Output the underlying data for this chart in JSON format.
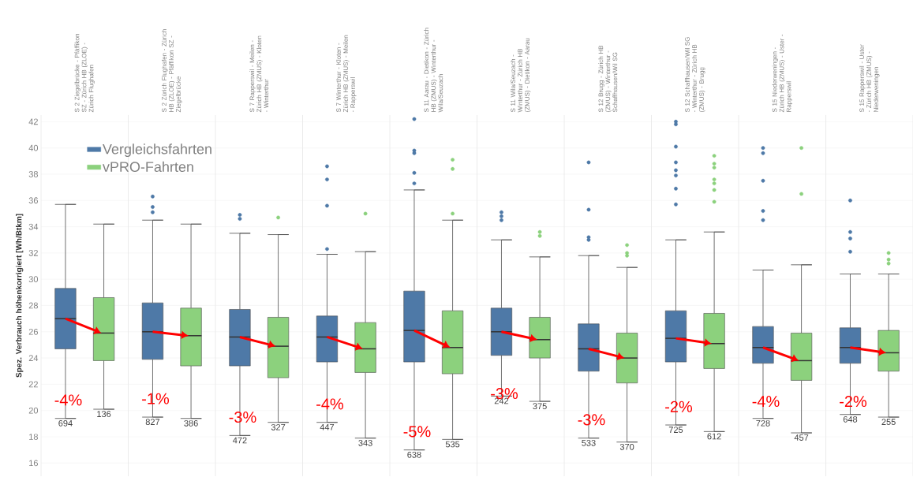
{
  "chart_data": {
    "type": "box",
    "ylabel": "Spez. Verbrauch höhenkorrigiert [Wh/Btkm]",
    "categories": [
      "S 2 Ziegelbrücke - Pfäffikon SZ - Zürich HB (ZLOE) - Zürich Flughafen",
      "S 2 Zürich Flughafen - Zürich HB (ZLOE) - Pfäffikon SZ - Ziegelbrücke",
      "S 7 Rapperswil - Meilen - Zürich HB (ZMUS) - Kloten - Winterthur",
      "S 7 Winterthur - Kloten - Zürich HB (ZMUS) - Meilen - Rapperswil",
      "S 11 Aarau - Dietikon - Zürich HB (ZMUS) - Winterthur - Wila/Seuzach",
      "S 11 Wila/Seuzach - Winterthur - Zürich HB (ZMUS) - Dietikon - Aarau",
      "S 12 Brugg - Zürich HB (ZMUS) - Winterthur - Schaffhausen/Wil SG",
      "S 12 Schaffhausen/Wil SG - Winterthur - Zürich HB (ZMUS) - Brugg",
      "S 15 Niederweningen - Zürich HB (ZMUS) - Uster - Rapperswil",
      "S 15 Rapperswil - Uster - Zürich HB (ZMUS) - Niederweningen"
    ],
    "series": [
      {
        "name": "Vergleichsfahrten",
        "color": "#4e79a7",
        "boxes": [
          {
            "low": 19.4,
            "q1": 24.7,
            "median": 27.0,
            "q3": 29.3,
            "high": 35.7
          },
          {
            "low": 19.5,
            "q1": 23.9,
            "median": 26.0,
            "q3": 28.2,
            "high": 34.5,
            "outliers": [
              36.3,
              35.5,
              35.1
            ]
          },
          {
            "low": 18.1,
            "q1": 23.4,
            "median": 25.6,
            "q3": 27.7,
            "high": 33.5,
            "outliers": [
              34.9,
              34.6
            ]
          },
          {
            "low": 19.1,
            "q1": 23.7,
            "median": 25.6,
            "q3": 27.2,
            "high": 31.9,
            "outliers": [
              38.6,
              37.6,
              35.6,
              32.3
            ]
          },
          {
            "low": 17.0,
            "q1": 23.7,
            "median": 26.1,
            "q3": 29.1,
            "high": 36.8,
            "outliers": [
              42.2,
              39.8,
              39.6,
              38.1,
              37.3
            ]
          },
          {
            "low": 21.1,
            "q1": 24.2,
            "median": 26.0,
            "q3": 27.8,
            "high": 33.0,
            "outliers": [
              35.1,
              34.8,
              34.5
            ]
          },
          {
            "low": 17.9,
            "q1": 23.0,
            "median": 24.7,
            "q3": 26.6,
            "high": 31.8,
            "outliers": [
              38.9,
              35.3,
              33.2,
              33.0
            ]
          },
          {
            "low": 18.9,
            "q1": 23.7,
            "median": 25.5,
            "q3": 27.6,
            "high": 33.0,
            "outliers": [
              42.0,
              41.8,
              40.1,
              38.9,
              38.3,
              37.9,
              36.9,
              35.7
            ]
          },
          {
            "low": 19.4,
            "q1": 23.6,
            "median": 24.8,
            "q3": 26.4,
            "high": 30.7,
            "outliers": [
              40.0,
              39.6,
              37.5,
              35.2,
              34.5
            ]
          },
          {
            "low": 19.7,
            "q1": 23.6,
            "median": 24.8,
            "q3": 26.3,
            "high": 30.4,
            "outliers": [
              36.0,
              33.6,
              33.1,
              32.1
            ]
          }
        ]
      },
      {
        "name": "vPRO-Fahrten",
        "color": "#8cd17d",
        "boxes": [
          {
            "low": 20.1,
            "q1": 23.8,
            "median": 25.9,
            "q3": 28.6,
            "high": 34.2
          },
          {
            "low": 19.4,
            "q1": 23.4,
            "median": 25.7,
            "q3": 27.8,
            "high": 34.2
          },
          {
            "low": 19.1,
            "q1": 22.5,
            "median": 24.9,
            "q3": 27.1,
            "high": 33.4,
            "outliers": [
              34.7
            ]
          },
          {
            "low": 17.9,
            "q1": 22.9,
            "median": 24.7,
            "q3": 26.7,
            "high": 32.1,
            "outliers": [
              35.0
            ]
          },
          {
            "low": 17.8,
            "q1": 22.8,
            "median": 24.8,
            "q3": 27.6,
            "high": 34.5,
            "outliers": [
              39.1,
              38.4,
              35.0
            ]
          },
          {
            "low": 20.7,
            "q1": 24.0,
            "median": 25.4,
            "q3": 27.1,
            "high": 31.7,
            "outliers": [
              33.6,
              33.3
            ]
          },
          {
            "low": 17.6,
            "q1": 22.1,
            "median": 24.0,
            "q3": 25.9,
            "high": 30.9,
            "outliers": [
              32.6,
              32.0,
              31.8
            ]
          },
          {
            "low": 18.4,
            "q1": 23.2,
            "median": 25.1,
            "q3": 27.4,
            "high": 33.6,
            "outliers": [
              39.4,
              38.8,
              38.5,
              37.6,
              37.3,
              36.8,
              35.9
            ]
          },
          {
            "low": 18.3,
            "q1": 22.3,
            "median": 23.8,
            "q3": 25.9,
            "high": 31.1,
            "outliers": [
              40.0,
              36.5
            ]
          },
          {
            "low": 19.5,
            "q1": 23.0,
            "median": 24.4,
            "q3": 26.1,
            "high": 30.4,
            "outliers": [
              32.0,
              31.5,
              31.2
            ]
          }
        ]
      }
    ],
    "annotations": [
      "694",
      "136",
      "827",
      "386",
      "472",
      "327",
      "447",
      "343",
      "638",
      "535",
      "242",
      "375",
      "533",
      "370",
      "725",
      "612",
      "728",
      "457",
      "648",
      "255",
      "-4%",
      "-1%",
      "-3%",
      "-4%",
      "-5%",
      "-3%",
      "-3%",
      "-2%",
      "-4%",
      "-2%"
    ],
    "ylim": [
      15,
      42.5
    ],
    "yticks": [
      16,
      18,
      20,
      22,
      24,
      26,
      28,
      30,
      32,
      34,
      36,
      38,
      40,
      42
    ],
    "grid": true,
    "legend": "top left",
    "marker": "circle"
  }
}
